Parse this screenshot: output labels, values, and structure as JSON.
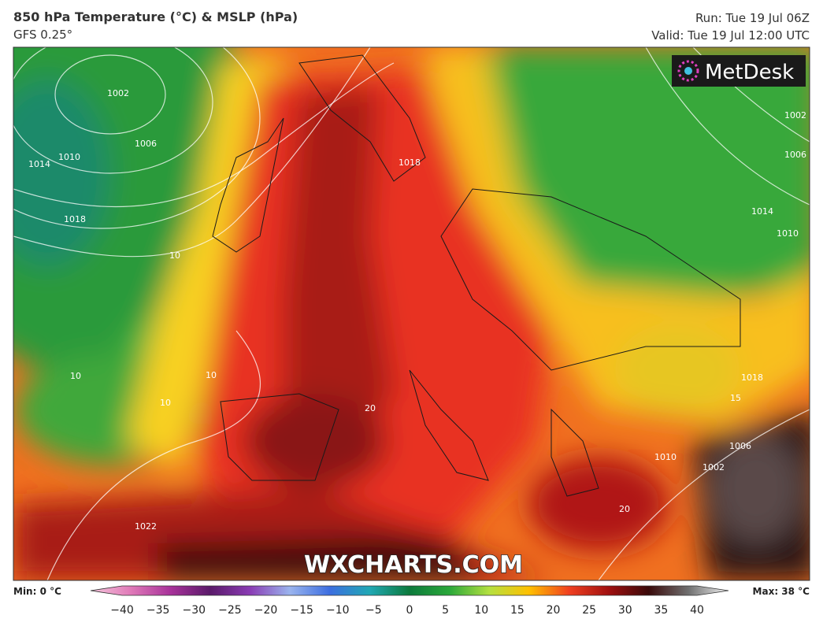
{
  "header": {
    "title": "850 hPa Temperature (°C) & MSLP (hPa)",
    "subtitle": "GFS 0.25°",
    "run": "Run: Tue 19 Jul 06Z",
    "valid": "Valid: Tue 19 Jul 12:00 UTC"
  },
  "logo": "MetDesk",
  "watermark": "WXCHARTS.COM",
  "contours": [
    "1002",
    "1006",
    "1010",
    "1014",
    "1018",
    "1022",
    "1018",
    "1010",
    "1002",
    "1006",
    "1014",
    "10",
    "10",
    "10",
    "10",
    "20",
    "20",
    "15",
    "1018",
    "1010",
    "1006",
    "1002"
  ],
  "legend": {
    "min": "Min: 0 °C",
    "max": "Max: 38 °C",
    "ticks": [
      "−40",
      "−35",
      "−30",
      "−25",
      "−20",
      "−15",
      "−10",
      "−5",
      "0",
      "5",
      "10",
      "15",
      "20",
      "25",
      "30",
      "35",
      "40"
    ]
  }
}
